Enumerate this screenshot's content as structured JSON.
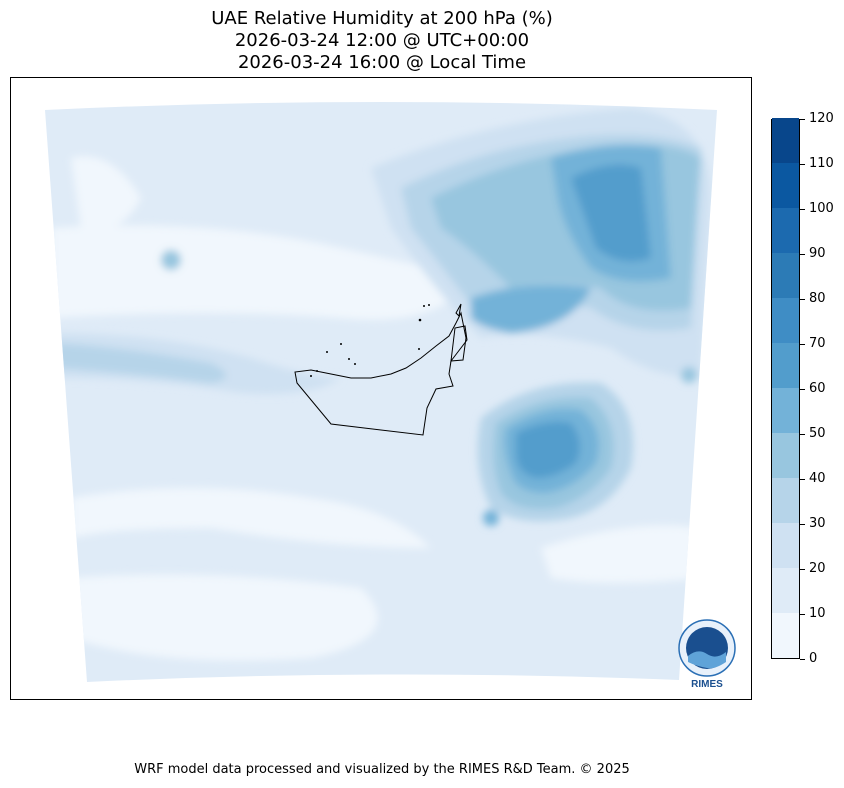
{
  "title_lines": [
    "UAE Relative Humidity at 200 hPa (%)",
    "2026-03-24 12:00 @ UTC+00:00",
    "2026-03-24 16:00 @ Local Time"
  ],
  "colorbar": {
    "ticks": [
      "0",
      "10",
      "20",
      "30",
      "40",
      "50",
      "60",
      "70",
      "80",
      "90",
      "100",
      "110",
      "120"
    ],
    "colors": [
      "#f1f7fd",
      "#dfebf7",
      "#cfe1f2",
      "#b6d4e9",
      "#98c6df",
      "#73b2d8",
      "#529dcc",
      "#3f8dc5",
      "#2c7bb6",
      "#1c6aaf",
      "#0b58a1",
      "#08468b"
    ]
  },
  "footer": "WRF model data processed and visualized by the RIMES R&D Team. © 2025",
  "logo": {
    "name": "RIMES",
    "icon": "rimes-logo"
  }
}
